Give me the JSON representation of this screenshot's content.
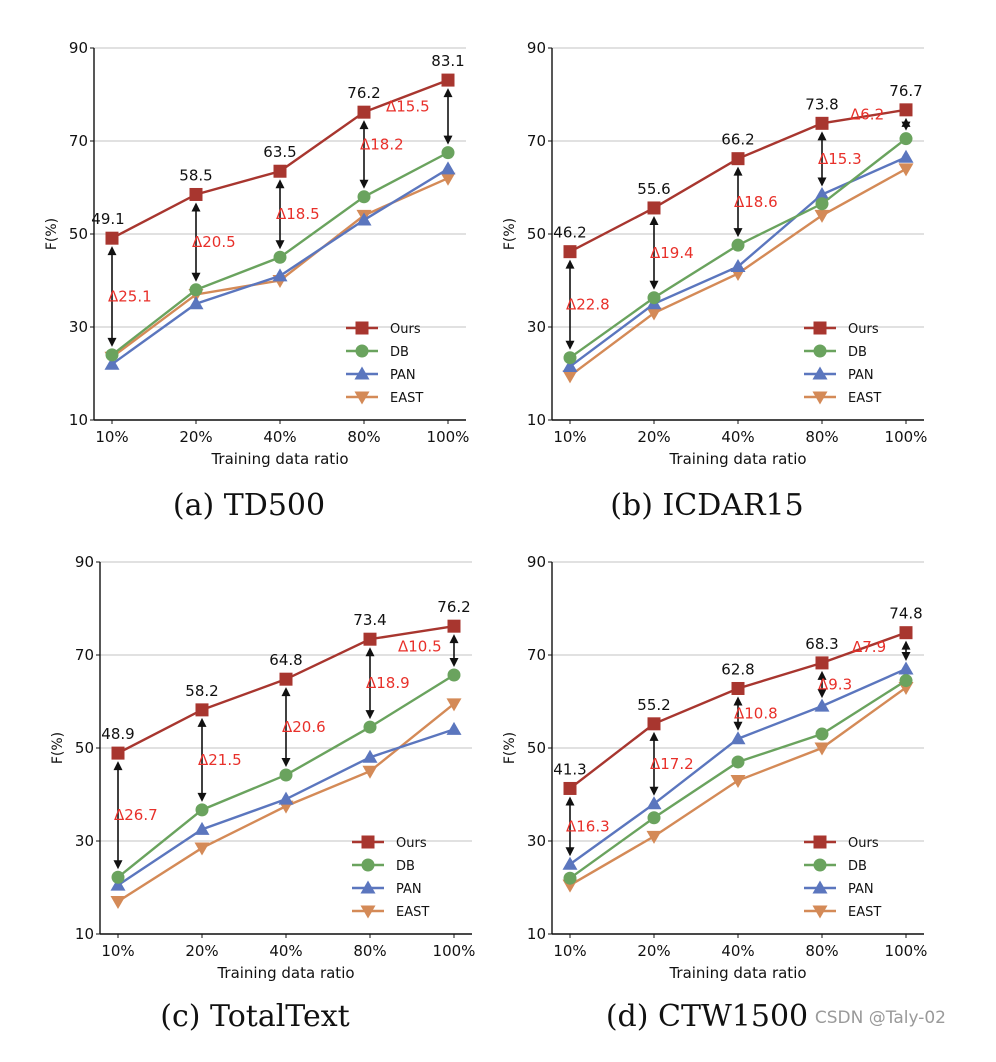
{
  "chart_data": [
    {
      "type": "line",
      "caption": "(a) TD500",
      "xlabel": "Training data ratio",
      "ylabel": "F(%)",
      "categories": [
        "10%",
        "20%",
        "40%",
        "80%",
        "100%"
      ],
      "ylim": [
        10,
        90
      ],
      "yticks": [
        10,
        30,
        50,
        70,
        90
      ],
      "series": [
        {
          "name": "Ours",
          "values": [
            49.1,
            58.5,
            63.5,
            76.2,
            83.1
          ]
        },
        {
          "name": "DB",
          "values": [
            24,
            38,
            45,
            58,
            67.5
          ]
        },
        {
          "name": "PAN",
          "values": [
            22,
            35,
            41,
            53,
            64
          ]
        },
        {
          "name": "EAST",
          "values": [
            23.5,
            37,
            40,
            54,
            62
          ]
        }
      ],
      "value_labels": [
        "49.1",
        "58.5",
        "63.5",
        "76.2",
        "83.1"
      ],
      "delta_labels": [
        "Δ25.1",
        "Δ20.5",
        "Δ18.5",
        "Δ18.2",
        "Δ15.5"
      ],
      "delta_ranges": [
        [
          24,
          49.1
        ],
        [
          38,
          58.5
        ],
        [
          45,
          63.5
        ],
        [
          58,
          76.2
        ],
        [
          67.5,
          83.1
        ]
      ],
      "legend": [
        "Ours",
        "DB",
        "PAN",
        "EAST"
      ],
      "legend_position": "lower-right"
    },
    {
      "type": "line",
      "caption": "(b) ICDAR15",
      "xlabel": "Training data ratio",
      "ylabel": "F(%)",
      "categories": [
        "10%",
        "20%",
        "40%",
        "80%",
        "100%"
      ],
      "ylim": [
        10,
        90
      ],
      "yticks": [
        10,
        30,
        50,
        70,
        90
      ],
      "series": [
        {
          "name": "Ours",
          "values": [
            46.2,
            55.6,
            66.2,
            73.8,
            76.7
          ]
        },
        {
          "name": "DB",
          "values": [
            23.4,
            36.3,
            47.6,
            56.5,
            70.5
          ]
        },
        {
          "name": "PAN",
          "values": [
            21.5,
            35,
            43,
            58.5,
            66.5
          ]
        },
        {
          "name": "EAST",
          "values": [
            19.5,
            33,
            41.5,
            54,
            64
          ]
        }
      ],
      "value_labels": [
        "46.2",
        "55.6",
        "66.2",
        "73.8",
        "76.7"
      ],
      "delta_labels": [
        "Δ22.8",
        "Δ19.4",
        "Δ18.6",
        "Δ15.3",
        "Δ6.2"
      ],
      "delta_ranges": [
        [
          23.4,
          46.2
        ],
        [
          36.3,
          55.6
        ],
        [
          47.6,
          66.2
        ],
        [
          58.5,
          73.8
        ],
        [
          70.5,
          76.7
        ]
      ],
      "legend": [
        "Ours",
        "DB",
        "PAN",
        "EAST"
      ],
      "legend_position": "lower-right"
    },
    {
      "type": "line",
      "caption": "(c) TotalText",
      "xlabel": "Training data ratio",
      "ylabel": "F(%)",
      "categories": [
        "10%",
        "20%",
        "40%",
        "80%",
        "100%"
      ],
      "ylim": [
        10,
        90
      ],
      "yticks": [
        10,
        30,
        50,
        70,
        90
      ],
      "series": [
        {
          "name": "Ours",
          "values": [
            48.9,
            58.2,
            64.8,
            73.4,
            76.2
          ]
        },
        {
          "name": "DB",
          "values": [
            22.2,
            36.7,
            44.2,
            54.5,
            65.7
          ]
        },
        {
          "name": "PAN",
          "values": [
            20.5,
            32.5,
            39,
            48,
            54
          ]
        },
        {
          "name": "EAST",
          "values": [
            17,
            28.5,
            37.5,
            45,
            59.5
          ]
        }
      ],
      "value_labels": [
        "48.9",
        "58.2",
        "64.8",
        "73.4",
        "76.2"
      ],
      "delta_labels": [
        "Δ26.7",
        "Δ21.5",
        "Δ20.6",
        "Δ18.9",
        "Δ10.5"
      ],
      "delta_ranges": [
        [
          22.2,
          48.9
        ],
        [
          36.7,
          58.2
        ],
        [
          44.2,
          64.8
        ],
        [
          54.5,
          73.4
        ],
        [
          65.7,
          76.2
        ]
      ],
      "legend": [
        "Ours",
        "DB",
        "PAN",
        "EAST"
      ],
      "legend_position": "lower-right"
    },
    {
      "type": "line",
      "caption": "(d) CTW1500",
      "xlabel": "Training data ratio",
      "ylabel": "F(%)",
      "categories": [
        "10%",
        "20%",
        "40%",
        "80%",
        "100%"
      ],
      "ylim": [
        10,
        90
      ],
      "yticks": [
        10,
        30,
        50,
        70,
        90
      ],
      "series": [
        {
          "name": "Ours",
          "values": [
            41.3,
            55.2,
            62.8,
            68.3,
            74.8
          ]
        },
        {
          "name": "DB",
          "values": [
            22,
            35,
            47,
            53,
            64.5
          ]
        },
        {
          "name": "PAN",
          "values": [
            25,
            38,
            52,
            59,
            67
          ]
        },
        {
          "name": "EAST",
          "values": [
            20.5,
            31,
            43,
            50,
            63
          ]
        }
      ],
      "value_labels": [
        "41.3",
        "55.2",
        "62.8",
        "68.3",
        "74.8"
      ],
      "delta_labels": [
        "Δ16.3",
        "Δ17.2",
        "Δ10.8",
        "Δ9.3",
        "Δ7.9"
      ],
      "delta_ranges": [
        [
          25,
          41.3
        ],
        [
          38,
          55.2
        ],
        [
          52,
          62.8
        ],
        [
          59,
          68.3
        ],
        [
          67,
          74.8
        ]
      ],
      "legend": [
        "Ours",
        "DB",
        "PAN",
        "EAST"
      ],
      "legend_position": "lower-right"
    }
  ],
  "colors": {
    "Ours": "#a8362f",
    "DB": "#6aa35e",
    "PAN": "#5b76be",
    "EAST": "#d48a57",
    "delta_text": "#e8302a"
  },
  "markers": {
    "Ours": "square",
    "DB": "circle",
    "PAN": "triangle-up",
    "EAST": "triangle-down"
  },
  "watermark": "CSDN @Taly-02"
}
